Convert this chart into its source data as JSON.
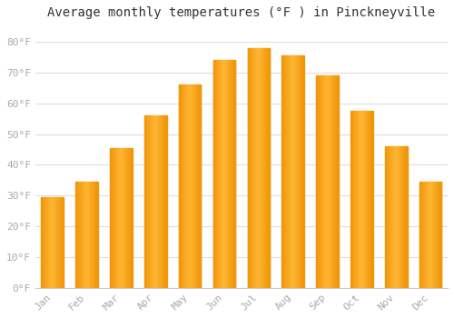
{
  "title": "Average monthly temperatures (°F ) in Pinckneyville",
  "months": [
    "Jan",
    "Feb",
    "Mar",
    "Apr",
    "May",
    "Jun",
    "Jul",
    "Aug",
    "Sep",
    "Oct",
    "Nov",
    "Dec"
  ],
  "values": [
    29.5,
    34.5,
    45.5,
    56.0,
    66.0,
    74.0,
    78.0,
    75.5,
    69.0,
    57.5,
    46.0,
    34.5
  ],
  "bar_color_center": "#FFB733",
  "bar_color_edge": "#F0960A",
  "ylim": [
    0,
    85
  ],
  "yticks": [
    0,
    10,
    20,
    30,
    40,
    50,
    60,
    70,
    80
  ],
  "background_color": "#ffffff",
  "plot_bg_color": "#ffffff",
  "grid_color": "#dddddd",
  "title_fontsize": 10,
  "tick_fontsize": 8,
  "tick_color": "#aaaaaa",
  "axis_color": "#cccccc"
}
